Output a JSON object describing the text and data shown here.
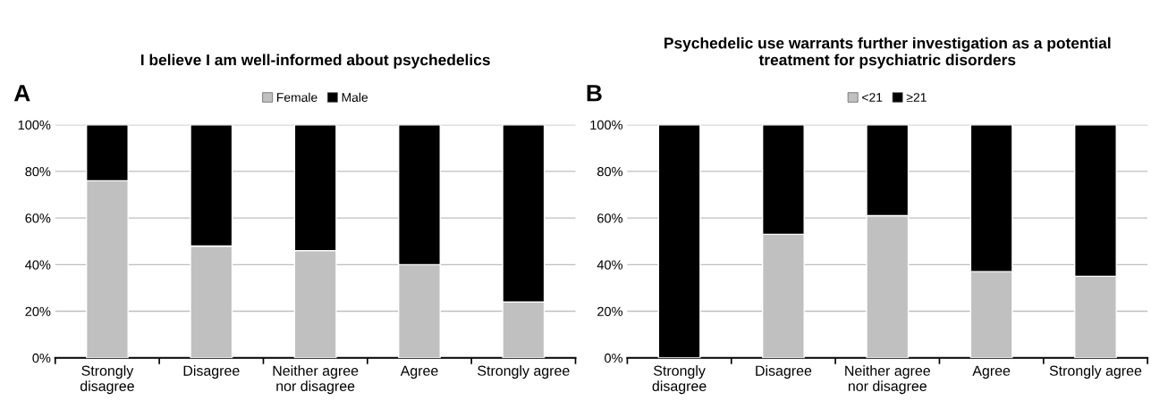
{
  "chart_data": [
    {
      "type": "bar",
      "title": "I believe I am well-informed about psychedelics",
      "annotations": [
        "A"
      ],
      "categories": [
        "Strongly\ndisagree",
        "Disagree",
        "Neither agree\nnor disagree",
        "Agree",
        "Strongly agree"
      ],
      "stacked": true,
      "legend": "top",
      "grid": "y",
      "series": [
        {
          "name": "Female",
          "color": "#c0c0c0",
          "values": [
            76,
            48,
            46,
            40,
            24
          ]
        },
        {
          "name": "Male",
          "color": "#000000",
          "values": [
            24,
            52,
            54,
            60,
            76
          ]
        }
      ],
      "ylim": [
        0,
        100
      ],
      "yticks": [
        {
          "value": 0,
          "label": "0%"
        },
        {
          "value": 20,
          "label": "20%"
        },
        {
          "value": 40,
          "label": "40%"
        },
        {
          "value": 60,
          "label": "60%"
        },
        {
          "value": 80,
          "label": "80%"
        },
        {
          "value": 100,
          "label": "100%"
        }
      ]
    },
    {
      "type": "bar",
      "title": "Psychedelic use warrants further investigation as a potential\ntreatment for psychiatric disorders",
      "annotations": [
        "B"
      ],
      "categories": [
        "Strongly\ndisagree",
        "Disagree",
        "Neither agree\nnor disagree",
        "Agree",
        "Strongly agree"
      ],
      "stacked": true,
      "legend": "top",
      "grid": "y",
      "series": [
        {
          "name": "<21",
          "color": "#c0c0c0",
          "values": [
            0,
            53,
            61,
            37,
            35
          ]
        },
        {
          "name": "≥21",
          "color": "#000000",
          "values": [
            100,
            47,
            39,
            63,
            65
          ]
        }
      ],
      "ylim": [
        0,
        100
      ],
      "yticks": [
        {
          "value": 0,
          "label": "0%"
        },
        {
          "value": 20,
          "label": "20%"
        },
        {
          "value": 40,
          "label": "40%"
        },
        {
          "value": 60,
          "label": "60%"
        },
        {
          "value": 80,
          "label": "80%"
        },
        {
          "value": 100,
          "label": "100%"
        }
      ]
    }
  ]
}
